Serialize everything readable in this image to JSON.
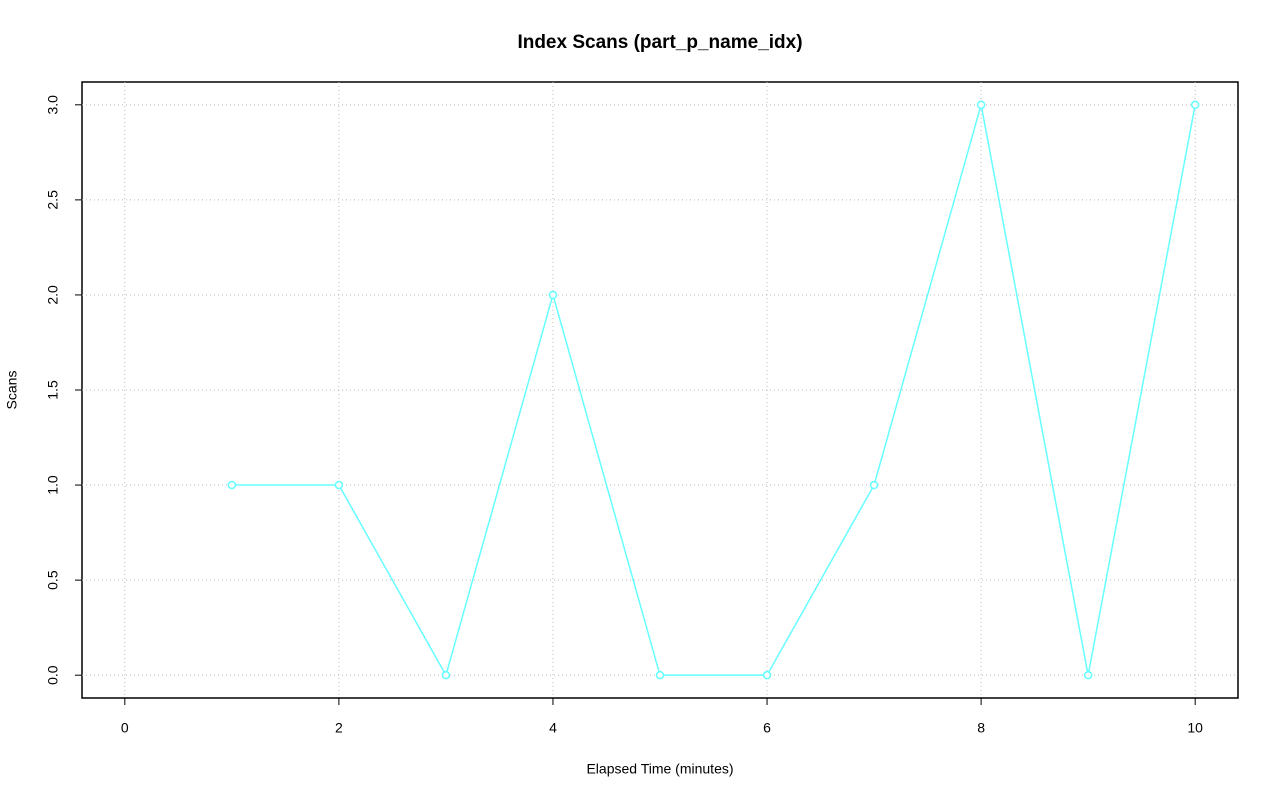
{
  "chart_data": {
    "type": "line",
    "title": "Index Scans (part_p_name_idx)",
    "x_label": "Elapsed Time (minutes)",
    "y_label": "Scans",
    "x": [
      1,
      2,
      3,
      4,
      5,
      6,
      7,
      8,
      9,
      10
    ],
    "series": [
      {
        "color": "#66ffff",
        "values": [
          1,
          1,
          0,
          2,
          0,
          0,
          1,
          3,
          0,
          3
        ]
      }
    ],
    "xlim": [
      -0.4,
      10.4
    ],
    "xticks": [
      0,
      2,
      4,
      6,
      8,
      10
    ],
    "ylim": [
      -0.12,
      3.12
    ],
    "yticks": [
      {
        "value": 0,
        "label": "0.0"
      },
      {
        "value": 0.5,
        "label": "0.5"
      },
      {
        "value": 1,
        "label": "1.0"
      },
      {
        "value": 1.5,
        "label": "1.5"
      },
      {
        "value": 2,
        "label": "2.0"
      },
      {
        "value": 2.5,
        "label": "2.5"
      },
      {
        "value": 3,
        "label": "3.0"
      }
    ],
    "grid": true
  }
}
